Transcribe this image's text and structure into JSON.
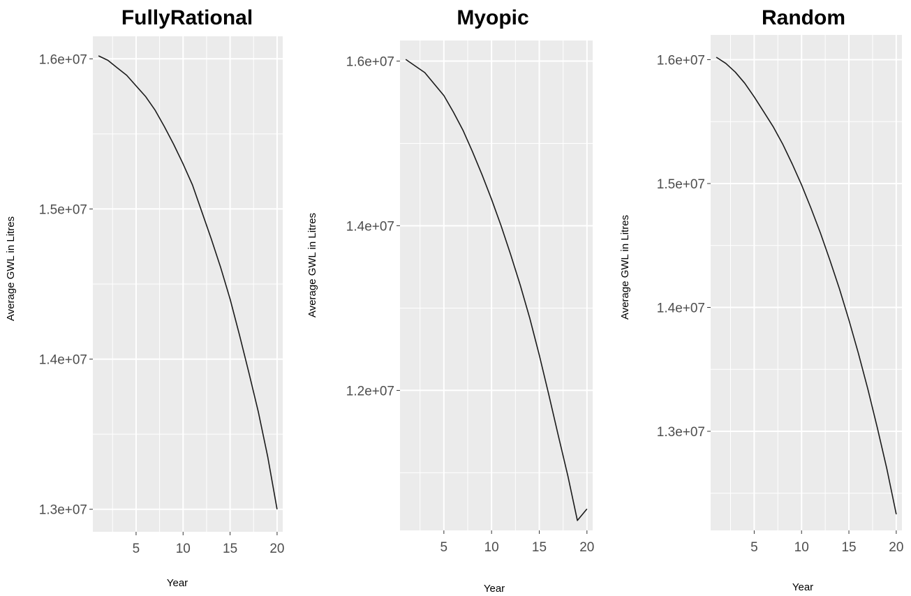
{
  "chart_data": [
    {
      "type": "line",
      "title": "FullyRational",
      "xlabel": "Year",
      "ylabel": "Average GWL in Litres",
      "xlim": [
        0.4,
        20.6
      ],
      "ylim": [
        12850000,
        16150000
      ],
      "x_ticks": [
        5,
        10,
        15,
        20
      ],
      "x_tick_labels": [
        "5",
        "10",
        "15",
        "20"
      ],
      "y_ticks": [
        13000000,
        14000000,
        15000000,
        16000000
      ],
      "y_tick_labels": [
        "1.3e+07",
        "1.4e+07",
        "1.5e+07",
        "1.6e+07"
      ],
      "grid": true,
      "series": [
        {
          "x": [
            1,
            2,
            3,
            4,
            5,
            6,
            7,
            8,
            9,
            10,
            11,
            12,
            13,
            14,
            15,
            16,
            17,
            18,
            19,
            20
          ],
          "values": [
            16020000,
            15990000,
            15940000,
            15890000,
            15820000,
            15750000,
            15660000,
            15550000,
            15430000,
            15300000,
            15160000,
            14980000,
            14800000,
            14610000,
            14400000,
            14160000,
            13910000,
            13650000,
            13350000,
            13000000
          ]
        }
      ]
    },
    {
      "type": "line",
      "title": "Myopic",
      "xlabel": "Year",
      "ylabel": "Average GWL in Litres",
      "xlim": [
        0.4,
        20.6
      ],
      "ylim": [
        10300000,
        16250000
      ],
      "x_ticks": [
        5,
        10,
        15,
        20
      ],
      "x_tick_labels": [
        "5",
        "10",
        "15",
        "20"
      ],
      "y_ticks": [
        12000000,
        14000000,
        16000000
      ],
      "y_tick_labels": [
        "1.2e+07",
        "1.4e+07",
        "1.6e+07"
      ],
      "grid": true,
      "series": [
        {
          "x": [
            1,
            2,
            3,
            4,
            5,
            6,
            7,
            8,
            9,
            10,
            11,
            12,
            13,
            14,
            15,
            16,
            17,
            18,
            19,
            20
          ],
          "values": [
            16020000,
            15940000,
            15860000,
            15720000,
            15580000,
            15380000,
            15160000,
            14900000,
            14620000,
            14320000,
            14000000,
            13650000,
            13280000,
            12880000,
            12430000,
            11950000,
            11450000,
            10960000,
            10420000,
            10560000
          ]
        }
      ]
    },
    {
      "type": "line",
      "title": "Random",
      "xlabel": "Year",
      "ylabel": "Average GWL in Litres",
      "xlim": [
        0.4,
        20.6
      ],
      "ylim": [
        12200000,
        16200000
      ],
      "x_ticks": [
        5,
        10,
        15,
        20
      ],
      "x_tick_labels": [
        "5",
        "10",
        "15",
        "20"
      ],
      "y_ticks": [
        13000000,
        14000000,
        15000000,
        16000000
      ],
      "y_tick_labels": [
        "1.3e+07",
        "1.4e+07",
        "1.5e+07",
        "1.6e+07"
      ],
      "grid": true,
      "series": [
        {
          "x": [
            1,
            2,
            3,
            4,
            5,
            6,
            7,
            8,
            9,
            10,
            11,
            12,
            13,
            14,
            15,
            16,
            17,
            18,
            19,
            20
          ],
          "values": [
            16020000,
            15970000,
            15900000,
            15810000,
            15700000,
            15580000,
            15460000,
            15320000,
            15160000,
            14990000,
            14800000,
            14600000,
            14380000,
            14150000,
            13900000,
            13630000,
            13340000,
            13030000,
            12700000,
            12330000
          ]
        }
      ]
    }
  ]
}
